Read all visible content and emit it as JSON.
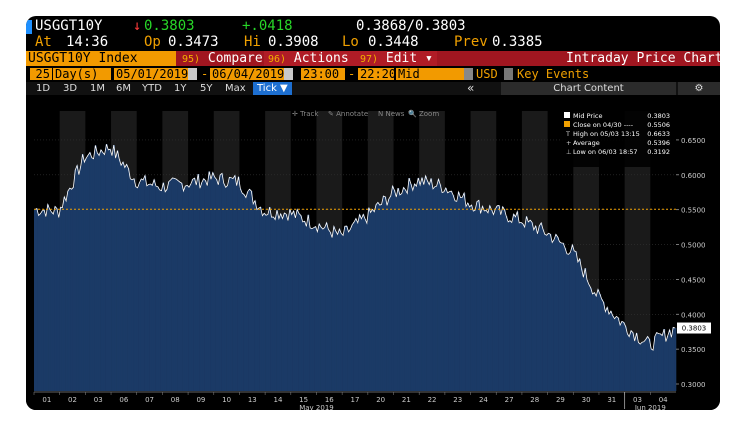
{
  "quote": {
    "ticker": "USGGT10Y",
    "arrow": "↓",
    "last": "0.3803",
    "change": "+.0418",
    "bid_ask": "0.3868/0.3803",
    "at_label": "At",
    "time": "14:36",
    "op_label": "Op",
    "open": "0.3473",
    "hi_label": "Hi",
    "high": "0.3908",
    "lo_label": "Lo",
    "low": "0.3448",
    "prev_label": "Prev",
    "prev": "0.3385"
  },
  "menu": {
    "index_name": "USGGT10Y Index",
    "compare_num": "95)",
    "compare": "Compare",
    "actions_num": "96)",
    "actions": "Actions ▾",
    "edit_num": "97)",
    "edit": "Edit ▾",
    "title": "Intraday Price Chart"
  },
  "range": {
    "count": "25",
    "unit": "Day(s)",
    "start": "05/01/2019",
    "end": "06/04/2019",
    "sep": "-",
    "time_start": "23:00",
    "time_end": "22:20",
    "field": "Mid",
    "currency": "USD",
    "key_events": "Key Events"
  },
  "toolbar": {
    "periods": [
      "1D",
      "3D",
      "1M",
      "6M",
      "YTD",
      "1Y",
      "5Y",
      "Max"
    ],
    "tick": "Tick ▼",
    "collapse": "«",
    "chart_content": "Chart Content",
    "gear": "⚙",
    "tools": [
      "Track",
      "Annotate",
      "News",
      "Zoom"
    ]
  },
  "chart_data": {
    "type": "area",
    "ylim": [
      0.29,
      0.68
    ],
    "yticks": [
      "0.6500",
      "0.6000",
      "0.5500",
      "0.5000",
      "0.4500",
      "0.4000",
      "0.3500",
      "0.3000"
    ],
    "ytick_values": [
      0.65,
      0.6,
      0.55,
      0.5,
      0.45,
      0.4,
      0.35,
      0.3
    ],
    "x_day_labels": [
      "01",
      "02",
      "03",
      "06",
      "07",
      "08",
      "09",
      "10",
      "13",
      "14",
      "15",
      "16",
      "17",
      "20",
      "21",
      "22",
      "23",
      "24",
      "27",
      "28",
      "29",
      "30",
      "31",
      "03",
      "04"
    ],
    "month_labels": [
      "May 2019",
      "Jun 2019"
    ],
    "daily_closes": [
      0.548,
      0.625,
      0.64,
      0.592,
      0.583,
      0.588,
      0.595,
      0.59,
      0.548,
      0.545,
      0.53,
      0.512,
      0.54,
      0.573,
      0.592,
      0.583,
      0.56,
      0.548,
      0.535,
      0.517,
      0.49,
      0.425,
      0.385,
      0.356,
      0.38
    ],
    "reference_line": 0.5506,
    "last_price_label": "0.3803",
    "legend": {
      "mid_price_label": "Mid Price",
      "mid_price": "0.3803",
      "close_label": "Close on 04/30 ----",
      "close": "0.5506",
      "high_label": "High on 05/03 13:15",
      "high": "0.6633",
      "average_label": "Average",
      "average": "0.5396",
      "low_label": "Low on 06/03 18:57",
      "low": "0.3192"
    },
    "colors": {
      "area": "#1b3a66",
      "line": "#ffffff",
      "reference": "#f0a000",
      "band": "#1a1a1a"
    }
  }
}
